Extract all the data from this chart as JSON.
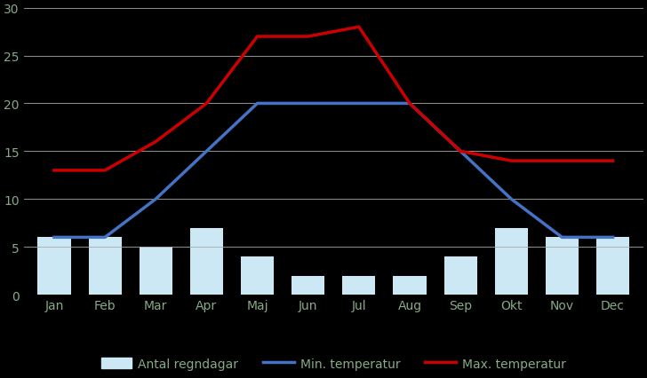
{
  "months": [
    "Jan",
    "Feb",
    "Mar",
    "Apr",
    "Maj",
    "Jun",
    "Jul",
    "Aug",
    "Sep",
    "Okt",
    "Nov",
    "Dec"
  ],
  "regndagar": [
    6,
    6,
    5,
    7,
    4,
    2,
    2,
    2,
    4,
    7,
    6,
    6
  ],
  "min_temp": [
    6,
    6,
    10,
    15,
    20,
    20,
    20,
    20,
    15,
    10,
    6,
    6
  ],
  "max_temp": [
    13,
    13,
    16,
    20,
    27,
    27,
    28,
    20,
    15,
    14,
    14,
    14
  ],
  "bar_color": "#cce8f4",
  "min_line_color": "#4472c4",
  "max_line_color": "#cc0000",
  "background_color": "#000000",
  "plot_bg_color": "#000000",
  "ylim": [
    0,
    30
  ],
  "yticks": [
    0,
    5,
    10,
    15,
    20,
    25,
    30
  ],
  "grid_color": "#aaaaaa",
  "text_color": "#88aa88",
  "legend_text_color": "#88aa88",
  "legend_labels": [
    "Antal regndagar",
    "Min. temperatur",
    "Max. temperatur"
  ]
}
